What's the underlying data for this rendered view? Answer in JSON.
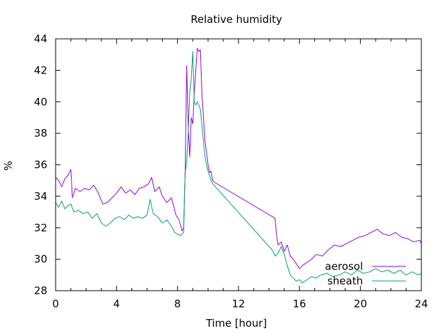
{
  "chart_data": {
    "type": "line",
    "title": "Relative humidity",
    "xlabel": "Time [hour]",
    "ylabel": "%",
    "xlim": [
      0,
      24
    ],
    "ylim": [
      28,
      44
    ],
    "xticks": [
      0,
      4,
      8,
      12,
      16,
      20,
      24
    ],
    "yticks": [
      28,
      30,
      32,
      34,
      36,
      38,
      40,
      42,
      44
    ],
    "grid": false,
    "legend_position": "bottom-right",
    "series": [
      {
        "name": "aerosol",
        "color": "#9400d3",
        "points": [
          [
            0.0,
            35.2
          ],
          [
            0.2,
            35.0
          ],
          [
            0.4,
            34.6
          ],
          [
            0.6,
            35.1
          ],
          [
            0.8,
            35.3
          ],
          [
            1.0,
            35.7
          ],
          [
            1.1,
            33.9
          ],
          [
            1.3,
            34.5
          ],
          [
            1.6,
            34.3
          ],
          [
            1.9,
            34.5
          ],
          [
            2.2,
            34.4
          ],
          [
            2.5,
            34.7
          ],
          [
            2.8,
            34.2
          ],
          [
            3.1,
            33.5
          ],
          [
            3.4,
            33.6
          ],
          [
            3.7,
            33.9
          ],
          [
            4.0,
            34.2
          ],
          [
            4.3,
            34.6
          ],
          [
            4.6,
            34.2
          ],
          [
            4.9,
            34.4
          ],
          [
            5.2,
            34.1
          ],
          [
            5.5,
            34.5
          ],
          [
            5.8,
            34.6
          ],
          [
            6.1,
            34.8
          ],
          [
            6.3,
            35.2
          ],
          [
            6.5,
            34.3
          ],
          [
            6.8,
            34.6
          ],
          [
            7.0,
            34.0
          ],
          [
            7.3,
            33.6
          ],
          [
            7.6,
            33.9
          ],
          [
            7.9,
            32.8
          ],
          [
            8.1,
            32.5
          ],
          [
            8.3,
            31.8
          ],
          [
            8.4,
            32.0
          ],
          [
            8.5,
            35.5
          ],
          [
            8.6,
            42.3
          ],
          [
            8.7,
            38.5
          ],
          [
            8.8,
            36.5
          ],
          [
            8.9,
            39.0
          ],
          [
            9.0,
            38.6
          ],
          [
            9.1,
            40.5
          ],
          [
            9.2,
            42.0
          ],
          [
            9.3,
            43.4
          ],
          [
            9.4,
            43.2
          ],
          [
            9.5,
            43.3
          ],
          [
            9.6,
            40.5
          ],
          [
            9.7,
            39.0
          ],
          [
            9.8,
            37.5
          ],
          [
            9.9,
            36.8
          ],
          [
            10.0,
            36.0
          ],
          [
            10.1,
            35.5
          ],
          [
            10.2,
            35.6
          ],
          [
            10.3,
            35.0
          ],
          [
            10.4,
            34.9
          ],
          [
            14.4,
            32.6
          ],
          [
            14.5,
            31.5
          ],
          [
            14.6,
            30.9
          ],
          [
            14.8,
            31.1
          ],
          [
            15.0,
            30.5
          ],
          [
            15.2,
            30.9
          ],
          [
            15.4,
            30.2
          ],
          [
            15.6,
            30.0
          ],
          [
            15.8,
            29.7
          ],
          [
            16.0,
            29.4
          ],
          [
            16.2,
            29.6
          ],
          [
            16.5,
            29.8
          ],
          [
            16.8,
            30.0
          ],
          [
            17.1,
            30.3
          ],
          [
            17.5,
            30.2
          ],
          [
            17.9,
            30.6
          ],
          [
            18.3,
            30.9
          ],
          [
            18.7,
            30.8
          ],
          [
            19.1,
            31.0
          ],
          [
            19.5,
            31.2
          ],
          [
            19.9,
            31.4
          ],
          [
            20.3,
            31.5
          ],
          [
            20.7,
            31.7
          ],
          [
            21.1,
            31.9
          ],
          [
            21.5,
            31.6
          ],
          [
            21.9,
            31.5
          ],
          [
            22.3,
            31.7
          ],
          [
            22.7,
            31.4
          ],
          [
            23.1,
            31.3
          ],
          [
            23.5,
            31.1
          ],
          [
            23.9,
            31.2
          ],
          [
            24.0,
            31.0
          ]
        ]
      },
      {
        "name": "sheath",
        "color": "#009e73",
        "points": [
          [
            0.0,
            33.6
          ],
          [
            0.2,
            33.3
          ],
          [
            0.4,
            33.7
          ],
          [
            0.6,
            33.2
          ],
          [
            0.8,
            33.4
          ],
          [
            1.0,
            33.5
          ],
          [
            1.2,
            33.0
          ],
          [
            1.5,
            33.1
          ],
          [
            1.8,
            32.9
          ],
          [
            2.1,
            33.0
          ],
          [
            2.4,
            32.6
          ],
          [
            2.7,
            32.9
          ],
          [
            3.0,
            32.3
          ],
          [
            3.3,
            32.1
          ],
          [
            3.6,
            32.3
          ],
          [
            3.9,
            32.6
          ],
          [
            4.2,
            32.7
          ],
          [
            4.5,
            32.5
          ],
          [
            4.8,
            32.8
          ],
          [
            5.1,
            32.6
          ],
          [
            5.4,
            32.7
          ],
          [
            5.7,
            32.6
          ],
          [
            6.0,
            32.8
          ],
          [
            6.2,
            33.8
          ],
          [
            6.4,
            32.9
          ],
          [
            6.7,
            32.7
          ],
          [
            7.0,
            32.3
          ],
          [
            7.3,
            32.5
          ],
          [
            7.6,
            32.1
          ],
          [
            7.8,
            31.7
          ],
          [
            8.0,
            31.6
          ],
          [
            8.2,
            31.5
          ],
          [
            8.4,
            31.7
          ],
          [
            8.5,
            35.5
          ],
          [
            8.6,
            36.2
          ],
          [
            8.7,
            38.0
          ],
          [
            8.8,
            40.6
          ],
          [
            8.9,
            41.5
          ],
          [
            9.0,
            43.2
          ],
          [
            9.1,
            40.0
          ],
          [
            9.2,
            39.8
          ],
          [
            9.3,
            40.0
          ],
          [
            9.4,
            39.8
          ],
          [
            9.5,
            39.5
          ],
          [
            9.6,
            38.5
          ],
          [
            9.7,
            37.5
          ],
          [
            9.8,
            36.5
          ],
          [
            9.9,
            36.0
          ],
          [
            10.0,
            35.6
          ],
          [
            10.1,
            35.3
          ],
          [
            10.2,
            35.0
          ],
          [
            10.3,
            34.8
          ],
          [
            14.2,
            30.6
          ],
          [
            14.4,
            30.2
          ],
          [
            14.6,
            30.4
          ],
          [
            14.8,
            30.8
          ],
          [
            15.0,
            30.3
          ],
          [
            15.2,
            29.6
          ],
          [
            15.4,
            29.0
          ],
          [
            15.6,
            28.8
          ],
          [
            15.8,
            28.6
          ],
          [
            16.0,
            28.7
          ],
          [
            16.2,
            28.5
          ],
          [
            16.5,
            28.7
          ],
          [
            16.8,
            28.9
          ],
          [
            17.1,
            28.8
          ],
          [
            17.4,
            29.0
          ],
          [
            17.8,
            29.1
          ],
          [
            18.2,
            28.9
          ],
          [
            18.6,
            29.0
          ],
          [
            19.0,
            29.2
          ],
          [
            19.4,
            29.0
          ],
          [
            19.8,
            29.3
          ],
          [
            20.2,
            29.1
          ],
          [
            20.6,
            29.2
          ],
          [
            21.0,
            29.4
          ],
          [
            21.4,
            29.2
          ],
          [
            21.8,
            29.3
          ],
          [
            22.2,
            29.1
          ],
          [
            22.6,
            29.3
          ],
          [
            23.0,
            29.0
          ],
          [
            23.4,
            29.2
          ],
          [
            23.8,
            29.0
          ],
          [
            24.0,
            29.1
          ]
        ]
      }
    ]
  }
}
